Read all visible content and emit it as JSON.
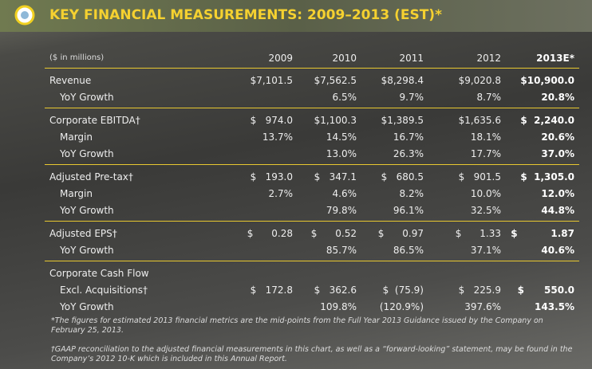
{
  "header": {
    "title": "KEY FINANCIAL MEASUREMENTS: 2009–2013 (EST)*"
  },
  "table": {
    "columns": [
      "($ in millions)",
      "2009",
      "2010",
      "2011",
      "2012",
      "2013E*"
    ],
    "groups": [
      {
        "rows": [
          {
            "label": "Revenue",
            "cells": [
              "$7,101.5",
              "$7,562.5",
              "$8,298.4",
              "$9,020.8",
              "$10,900.0"
            ]
          },
          {
            "label": "YoY Growth",
            "cells": [
              null,
              "6.5%",
              "9.7%",
              "8.7%",
              "20.8%"
            ]
          }
        ]
      },
      {
        "rows": [
          {
            "label": "Corporate EBITDA†",
            "cells": [
              "$   974.0",
              "$1,100.3",
              "$1,389.5",
              "$1,635.6",
              "$  2,240.0"
            ]
          },
          {
            "label": "Margin",
            "cells": [
              "13.7%",
              "14.5%",
              "16.7%",
              "18.1%",
              "20.6%"
            ]
          },
          {
            "label": "YoY Growth",
            "cells": [
              null,
              "13.0%",
              "26.3%",
              "17.7%",
              "37.0%"
            ]
          }
        ]
      },
      {
        "rows": [
          {
            "label": "Adjusted Pre-tax†",
            "cells": [
              "$   193.0",
              "$   347.1",
              "$   680.5",
              "$   901.5",
              "$  1,305.0"
            ]
          },
          {
            "label": "Margin",
            "cells": [
              "2.7%",
              "4.6%",
              "8.2%",
              "10.0%",
              "12.0%"
            ]
          },
          {
            "label": "YoY Growth",
            "cells": [
              null,
              "79.8%",
              "96.1%",
              "32.5%",
              "44.8%"
            ]
          }
        ]
      },
      {
        "rows": [
          {
            "label": "Adjusted EPS†",
            "cells": [
              "$      0.28",
              "$      0.52",
              "$      0.97",
              "$      1.33",
              "$          1.87"
            ]
          },
          {
            "label": "YoY Growth",
            "cells": [
              null,
              "85.7%",
              "86.5%",
              "37.1%",
              "40.6%"
            ]
          }
        ]
      },
      {
        "rows": [
          {
            "label": "Corporate Cash Flow",
            "cells": [
              null,
              null,
              null,
              null,
              null
            ]
          },
          {
            "label": "Excl. Acquisitions†",
            "cells": [
              "$   172.8",
              "$   362.6",
              "$  (75.9)",
              "$   225.9",
              "$      550.0"
            ]
          },
          {
            "label": "YoY Growth",
            "cells": [
              null,
              "109.8%",
              "(120.9%)",
              "397.6%",
              "143.5%"
            ]
          }
        ]
      }
    ]
  },
  "footnotes": [
    "*The figures for estimated 2013 financial metrics are the mid-points from the Full Year 2013 Guidance issued by the Company on February 25, 2013.",
    "†GAAP reconciliation to the adjusted financial measurements in this chart, as well as a “forward-looking” statement, may be found in the Company’s 2012 10-K which is included in this Annual Report."
  ]
}
